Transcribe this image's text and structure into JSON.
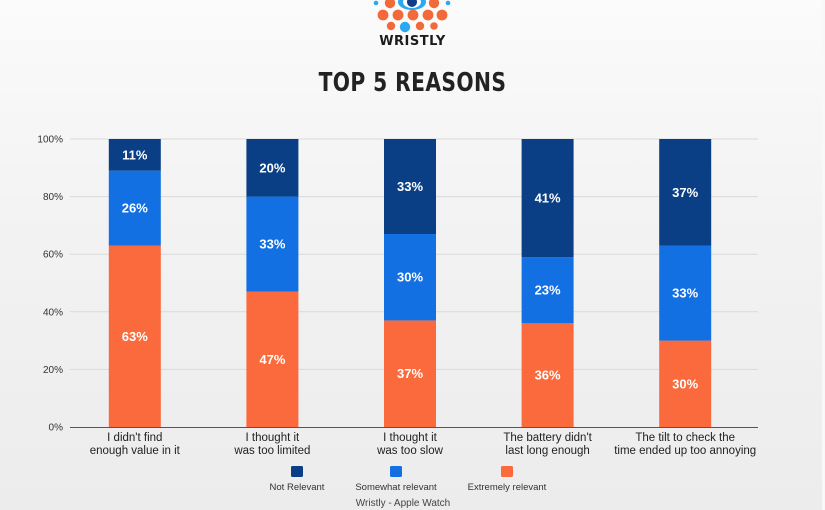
{
  "header": {
    "brand": "WRISTLY",
    "title": "TOP 5 REASONS"
  },
  "colors": {
    "not_relevant": "#0a3f86",
    "somewhat_relevant": "#1270e3",
    "extremely_relevant": "#fb6a3c",
    "logo_orange": "#f26a3a",
    "logo_blue": "#2aa9f0",
    "logo_navy": "#0f3d8c"
  },
  "chart_data": {
    "type": "bar",
    "stacked": true,
    "title": "TOP 5 REASONS",
    "xlabel": "",
    "ylabel": "",
    "ylim": [
      0,
      100
    ],
    "yticks": [
      0,
      20,
      40,
      60,
      80,
      100
    ],
    "ytick_labels": [
      "0%",
      "20%",
      "40%",
      "60%",
      "80%",
      "100%"
    ],
    "grid": true,
    "categories": [
      [
        "I didn't find",
        "enough value in it"
      ],
      [
        "I thought it",
        "was too limited"
      ],
      [
        "I thought it",
        "was too slow"
      ],
      [
        "The battery didn't",
        "last long enough"
      ],
      [
        "The tilt to check the",
        "time ended up too annoying"
      ]
    ],
    "series": [
      {
        "name": "Extremely relevant",
        "color": "#fb6a3c",
        "values": [
          63,
          47,
          37,
          36,
          30
        ]
      },
      {
        "name": "Somewhat relevant",
        "color": "#1270e3",
        "values": [
          26,
          33,
          30,
          23,
          33
        ]
      },
      {
        "name": "Not Relevant",
        "color": "#0a3f86",
        "values": [
          11,
          20,
          33,
          41,
          37
        ]
      }
    ],
    "legend": {
      "position": "bottom",
      "order": [
        "Not Relevant",
        "Somewhat relevant",
        "Extremely relevant"
      ]
    },
    "value_label_suffix": "%"
  },
  "footer": {
    "source": "Wristly - Apple Watch"
  }
}
